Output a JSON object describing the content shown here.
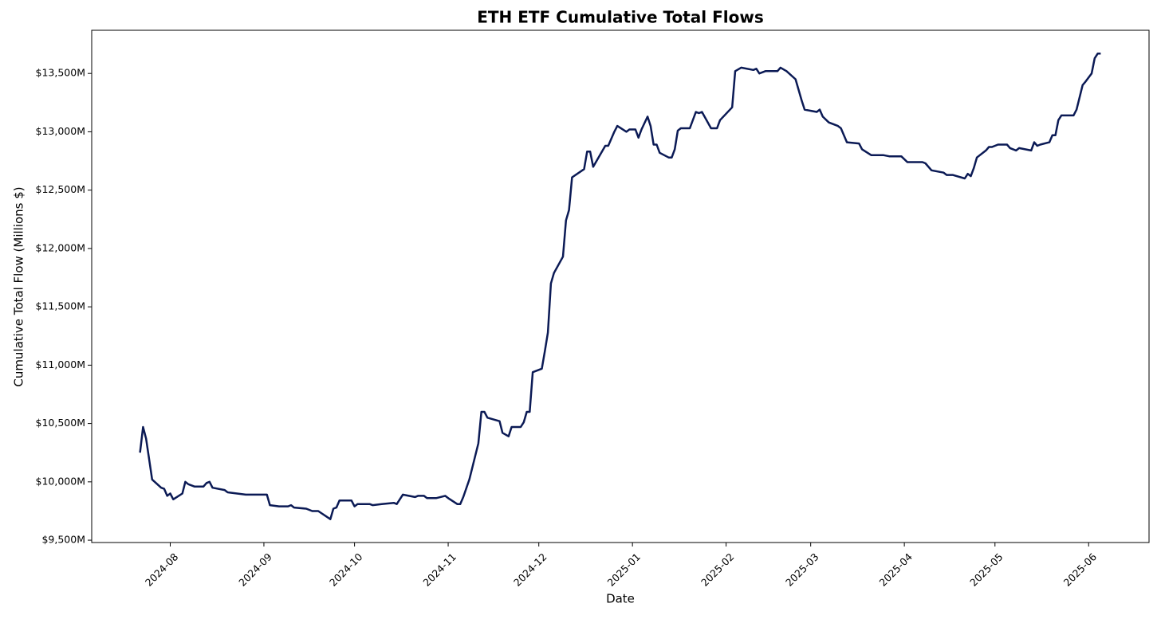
{
  "chart_data": {
    "type": "line",
    "title": "ETH ETF Cumulative Total Flows",
    "x_label": "Date",
    "y_label": "Cumulative Total Flow (Millions $)",
    "color": "#0b1a55",
    "x": [
      "2024-07-22",
      "2024-07-23",
      "2024-07-24",
      "2024-07-26",
      "2024-07-29",
      "2024-07-30",
      "2024-07-31",
      "2024-08-01",
      "2024-08-02",
      "2024-08-05",
      "2024-08-06",
      "2024-08-07",
      "2024-08-09",
      "2024-08-12",
      "2024-08-13",
      "2024-08-14",
      "2024-08-15",
      "2024-08-19",
      "2024-08-20",
      "2024-08-26",
      "2024-08-27",
      "2024-09-02",
      "2024-09-03",
      "2024-09-06",
      "2024-09-09",
      "2024-09-10",
      "2024-09-11",
      "2024-09-15",
      "2024-09-17",
      "2024-09-19",
      "2024-09-23",
      "2024-09-24",
      "2024-09-25",
      "2024-09-26",
      "2024-09-30",
      "2024-10-01",
      "2024-10-02",
      "2024-10-03",
      "2024-10-06",
      "2024-10-07",
      "2024-10-10",
      "2024-10-14",
      "2024-10-15",
      "2024-10-17",
      "2024-10-21",
      "2024-10-22",
      "2024-10-24",
      "2024-10-25",
      "2024-10-28",
      "2024-10-31",
      "2024-11-01",
      "2024-11-04",
      "2024-11-05",
      "2024-11-06",
      "2024-11-08",
      "2024-11-11",
      "2024-11-12",
      "2024-11-13",
      "2024-11-14",
      "2024-11-18",
      "2024-11-19",
      "2024-11-21",
      "2024-11-22",
      "2024-11-25",
      "2024-11-26",
      "2024-11-27",
      "2024-11-28",
      "2024-11-29",
      "2024-12-02",
      "2024-12-03",
      "2024-12-04",
      "2024-12-05",
      "2024-12-06",
      "2024-12-09",
      "2024-12-10",
      "2024-12-11",
      "2024-12-12",
      "2024-12-16",
      "2024-12-17",
      "2024-12-18",
      "2024-12-19",
      "2024-12-23",
      "2024-12-24",
      "2024-12-26",
      "2024-12-27",
      "2024-12-30",
      "2024-12-31",
      "2025-01-02",
      "2025-01-03",
      "2025-01-04",
      "2025-01-06",
      "2025-01-07",
      "2025-01-08",
      "2025-01-09",
      "2025-01-10",
      "2025-01-13",
      "2025-01-14",
      "2025-01-15",
      "2025-01-16",
      "2025-01-17",
      "2025-01-20",
      "2025-01-22",
      "2025-01-23",
      "2025-01-24",
      "2025-01-27",
      "2025-01-29",
      "2025-01-30",
      "2025-02-03",
      "2025-02-04",
      "2025-02-06",
      "2025-02-10",
      "2025-02-11",
      "2025-02-12",
      "2025-02-14",
      "2025-02-18",
      "2025-02-19",
      "2025-02-21",
      "2025-02-24",
      "2025-02-26",
      "2025-02-27",
      "2025-03-03",
      "2025-03-04",
      "2025-03-05",
      "2025-03-07",
      "2025-03-10",
      "2025-03-11",
      "2025-03-13",
      "2025-03-17",
      "2025-03-18",
      "2025-03-21",
      "2025-03-25",
      "2025-03-27",
      "2025-03-31",
      "2025-04-02",
      "2025-04-07",
      "2025-04-08",
      "2025-04-10",
      "2025-04-14",
      "2025-04-15",
      "2025-04-17",
      "2025-04-21",
      "2025-04-22",
      "2025-04-23",
      "2025-04-24",
      "2025-04-25",
      "2025-04-28",
      "2025-04-29",
      "2025-04-30",
      "2025-05-02",
      "2025-05-05",
      "2025-05-06",
      "2025-05-08",
      "2025-05-09",
      "2025-05-13",
      "2025-05-14",
      "2025-05-15",
      "2025-05-16",
      "2025-05-19",
      "2025-05-20",
      "2025-05-21",
      "2025-05-22",
      "2025-05-23",
      "2025-05-27",
      "2025-05-28",
      "2025-05-30",
      "2025-05-31",
      "2025-06-02",
      "2025-06-03",
      "2025-06-04",
      "2025-06-05"
    ],
    "values": [
      10250,
      10470,
      10370,
      10020,
      9950,
      9940,
      9880,
      9900,
      9850,
      9900,
      10000,
      9980,
      9960,
      9960,
      9990,
      10000,
      9950,
      9930,
      9910,
      9890,
      9890,
      9890,
      9800,
      9790,
      9790,
      9800,
      9780,
      9770,
      9750,
      9750,
      9680,
      9770,
      9780,
      9840,
      9840,
      9790,
      9810,
      9810,
      9810,
      9800,
      9810,
      9820,
      9810,
      9890,
      9870,
      9880,
      9880,
      9860,
      9860,
      9880,
      9860,
      9810,
      9810,
      9870,
      10020,
      10330,
      10600,
      10600,
      10550,
      10520,
      10420,
      10390,
      10470,
      10470,
      10510,
      10600,
      10600,
      10940,
      10970,
      11120,
      11280,
      11700,
      11790,
      11930,
      12240,
      12330,
      12610,
      12680,
      12830,
      12830,
      12700,
      12880,
      12880,
      13000,
      13050,
      13000,
      13020,
      13020,
      12950,
      13020,
      13130,
      13050,
      12890,
      12890,
      12820,
      12780,
      12780,
      12850,
      13010,
      13030,
      13030,
      13170,
      13160,
      13170,
      13030,
      13030,
      13100,
      13210,
      13520,
      13550,
      13530,
      13540,
      13500,
      13520,
      13520,
      13550,
      13520,
      13450,
      13270,
      13190,
      13170,
      13190,
      13130,
      13080,
      13050,
      13030,
      12910,
      12900,
      12850,
      12800,
      12800,
      12790,
      12790,
      12740,
      12740,
      12730,
      12670,
      12650,
      12630,
      12630,
      12600,
      12640,
      12620,
      12690,
      12780,
      12840,
      12870,
      12870,
      12890,
      12890,
      12860,
      12840,
      12860,
      12840,
      12910,
      12880,
      12890,
      12910,
      12970,
      12970,
      13100,
      13140,
      13140,
      13190,
      13400,
      13430,
      13500,
      13630,
      13670,
      13670
    ],
    "xlim": [
      "2024-07-06",
      "2025-06-21"
    ],
    "xticks": [
      "2024-08",
      "2024-09",
      "2024-10",
      "2024-11",
      "2024-12",
      "2025-01",
      "2025-02",
      "2025-03",
      "2025-04",
      "2025-05",
      "2025-06"
    ],
    "ylim": [
      9480,
      13870
    ],
    "yticks": [
      {
        "value": 9500,
        "label": "$9,500M"
      },
      {
        "value": 10000,
        "label": "$10,000M"
      },
      {
        "value": 10500,
        "label": "$10,500M"
      },
      {
        "value": 11000,
        "label": "$11,000M"
      },
      {
        "value": 11500,
        "label": "$11,500M"
      },
      {
        "value": 12000,
        "label": "$12,000M"
      },
      {
        "value": 12500,
        "label": "$12,500M"
      },
      {
        "value": 13000,
        "label": "$13,000M"
      },
      {
        "value": 13500,
        "label": "$13,500M"
      }
    ],
    "grid": false
  }
}
